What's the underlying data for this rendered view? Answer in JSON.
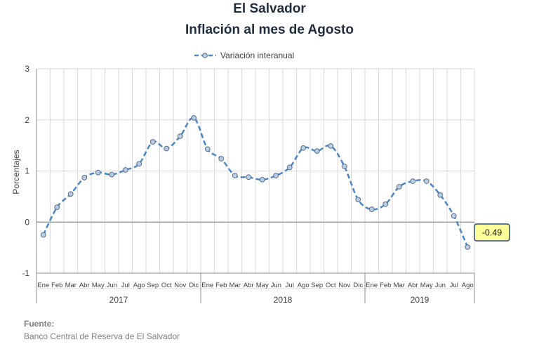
{
  "title": "El Salvador",
  "subtitle": "Inflación al mes de Agosto",
  "source": {
    "label": "Fuente:",
    "text": "Banco Central de Reserva de El Salvador"
  },
  "chart_data": {
    "type": "line",
    "ylabel": "Porcentajes",
    "ylim": [
      -1,
      3
    ],
    "yticks": [
      -1,
      0,
      1,
      2,
      3
    ],
    "grid": true,
    "legend": "top-center",
    "line_color": "#4a86c8",
    "marker_fill": "#b9cde5",
    "callout_color": "#ffff99",
    "series": [
      {
        "name": "Variación interanual",
        "values": [
          -0.25,
          0.29,
          0.55,
          0.87,
          0.97,
          0.93,
          1.02,
          1.14,
          1.57,
          1.44,
          1.68,
          2.04,
          1.43,
          1.24,
          0.91,
          0.88,
          0.83,
          0.91,
          1.07,
          1.45,
          1.39,
          1.49,
          1.09,
          0.44,
          0.25,
          0.35,
          0.69,
          0.8,
          0.8,
          0.53,
          0.12,
          -0.49
        ]
      }
    ],
    "categories": [
      "Ene",
      "Feb",
      "Mar",
      "Abr",
      "May",
      "Jun",
      "Jul",
      "Ago",
      "Sep",
      "Oct",
      "Nov",
      "Dic",
      "Ene",
      "Feb",
      "Mar",
      "Abr",
      "May",
      "Jun",
      "Jul",
      "Ago",
      "Sep",
      "Oct",
      "Nov",
      "Dic",
      "Ene",
      "Feb",
      "Mar",
      "Abr",
      "May",
      "Jun",
      "Jul",
      "Ago"
    ],
    "year_groups": [
      {
        "label": "2017",
        "count": 12
      },
      {
        "label": "2018",
        "count": 12
      },
      {
        "label": "2019",
        "count": 8
      }
    ],
    "callout": {
      "text": "-0.49"
    }
  }
}
